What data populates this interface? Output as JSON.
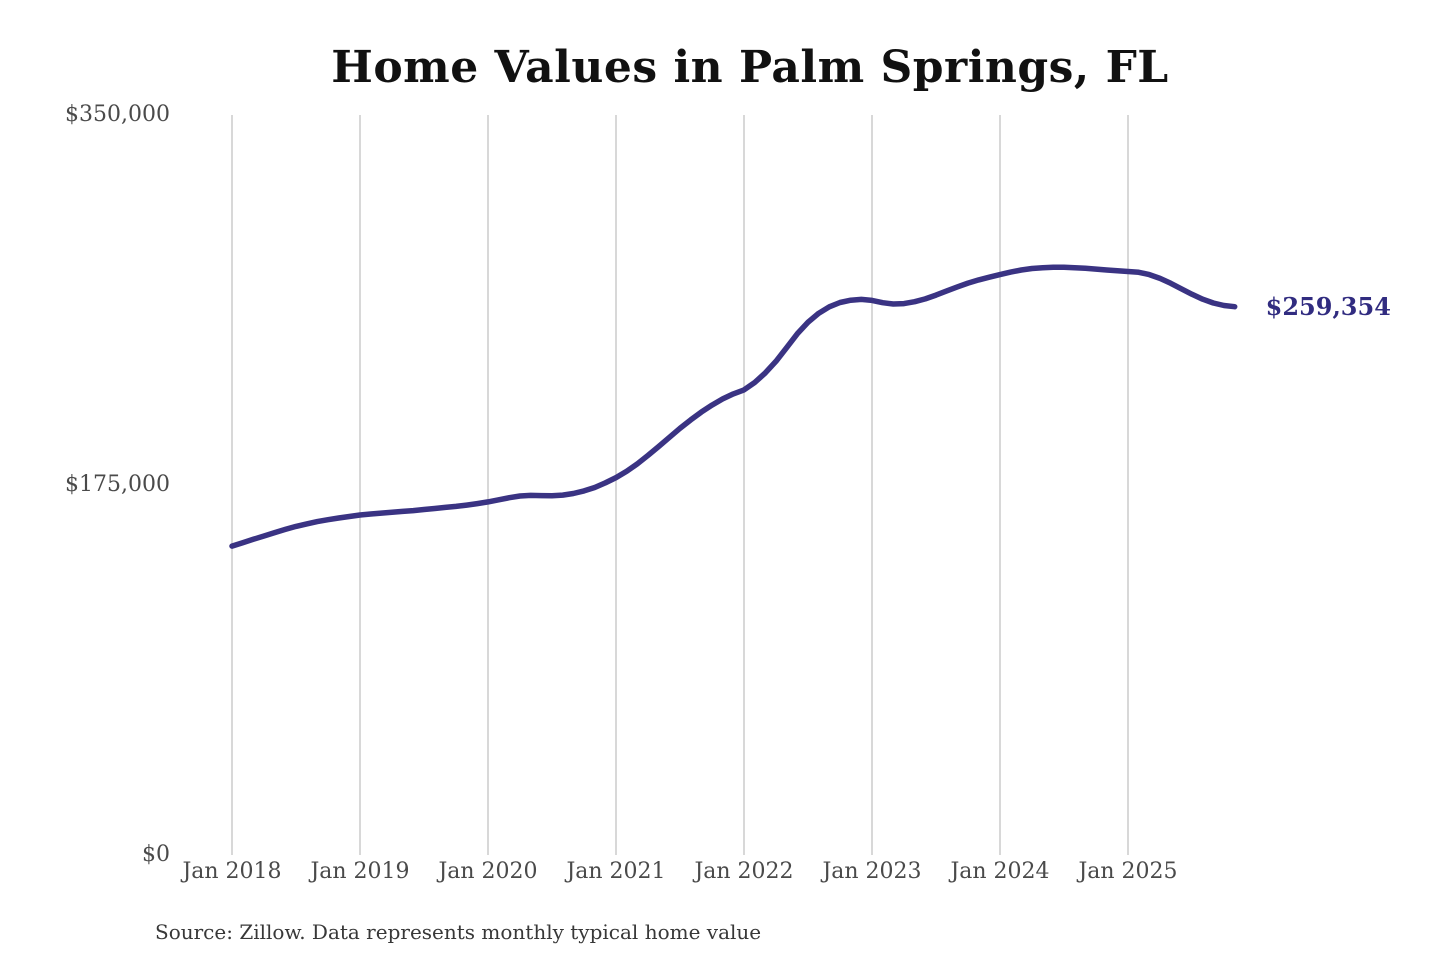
{
  "title": "Home Values in Palm Springs, FL",
  "source_note": "Source: Zillow. Data represents monthly typical home value",
  "latest_value_label": "$259,354",
  "colors": {
    "line": "#3a3383",
    "latest_value_label": "#312c80",
    "gridline": "#cbcbcb",
    "axis_text": "#4a4a4a",
    "title_text": "#111111",
    "source_text": "#383838",
    "background": "#ffffff"
  },
  "chart_data": {
    "type": "line",
    "title": "Home Values in Palm Springs, FL",
    "xlabel": "",
    "ylabel": "",
    "ylim": [
      0,
      350000
    ],
    "grid": "vertical-only",
    "legend": "none",
    "y_tick_labels": [
      "$0",
      "$175,000",
      "$350,000"
    ],
    "y_tick_values": [
      0,
      175000,
      350000
    ],
    "x_tick_labels": [
      "Jan 2018",
      "Jan 2019",
      "Jan 2020",
      "Jan 2021",
      "Jan 2022",
      "Jan 2023",
      "Jan 2024",
      "Jan 2025"
    ],
    "series": [
      {
        "name": "Monthly typical home value",
        "unit": "USD",
        "x_start": "2018-01",
        "cadence": "monthly",
        "final_value": 259354,
        "final_value_label": "$259,354",
        "values": [
          146100,
          147700,
          149300,
          150900,
          152500,
          154000,
          155400,
          156600,
          157700,
          158600,
          159400,
          160100,
          160800,
          161300,
          161700,
          162100,
          162500,
          162900,
          163400,
          163900,
          164400,
          164900,
          165500,
          166200,
          167000,
          168000,
          169000,
          169800,
          170100,
          170000,
          169900,
          170200,
          171000,
          172200,
          173800,
          176000,
          178500,
          181500,
          185000,
          189000,
          193200,
          197500,
          201800,
          205800,
          209500,
          212800,
          215700,
          218100,
          220000,
          223500,
          228000,
          233500,
          240000,
          246500,
          252000,
          256200,
          259300,
          261300,
          262400,
          262800,
          262300,
          261200,
          260600,
          260800,
          261700,
          263000,
          264800,
          266800,
          268700,
          270500,
          272000,
          273300,
          274500,
          275700,
          276700,
          277400,
          277800,
          278000,
          278000,
          277800,
          277500,
          277100,
          276700,
          276300,
          276000,
          275600,
          274500,
          272700,
          270400,
          267800,
          265200,
          262900,
          261100,
          259900,
          259354
        ]
      }
    ]
  }
}
